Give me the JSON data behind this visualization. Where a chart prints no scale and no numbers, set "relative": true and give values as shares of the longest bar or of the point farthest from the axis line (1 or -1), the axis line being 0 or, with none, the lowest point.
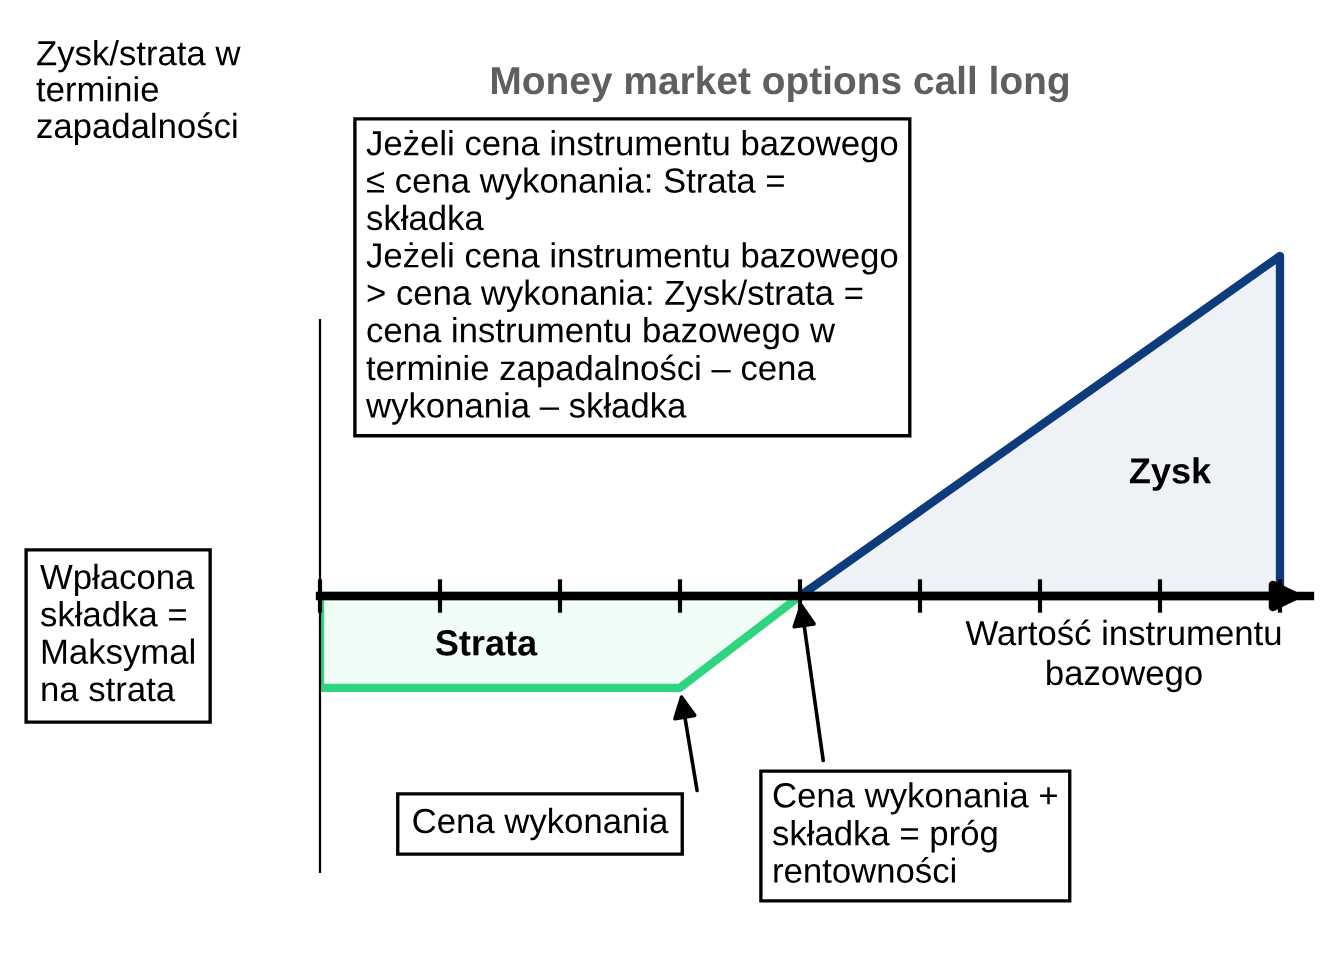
{
  "chart_data": {
    "type": "area",
    "relative": true,
    "title": "Money market options call long",
    "ylabel": "Zysk/strata w\nterminie\nzapadalności",
    "xlabel": "Wartość instrumentu\nbazowego",
    "categories": [
      null,
      null,
      null,
      null,
      null,
      null,
      null,
      null,
      null
    ],
    "series": [
      {
        "color": "#2ed47f",
        "values": [
          -0.27,
          -0.27,
          -0.27,
          -0.27,
          0,
          null,
          null,
          null,
          null
        ]
      },
      {
        "color": "#0d3b7c",
        "values": [
          null,
          null,
          null,
          null,
          0,
          0.25,
          0.5,
          0.75,
          1
        ]
      }
    ],
    "annotations": [
      "Jeżeli cena instrumentu bazowego\n≤ cena wykonania: Strata =\nskładka\nJeżeli cena instrumentu bazowego\n> cena wykonania: Zysk/strata =\ncena instrumentu bazowego w\nterminie zapadalności – cena\nwykonania – składka",
      "Zysk",
      "Strata",
      "Wpłacona\nskładka =\nMaksymal\nna strata",
      "Cena wykonania",
      "Cena wykonania +\nskładka = próg\nrentowności"
    ]
  }
}
